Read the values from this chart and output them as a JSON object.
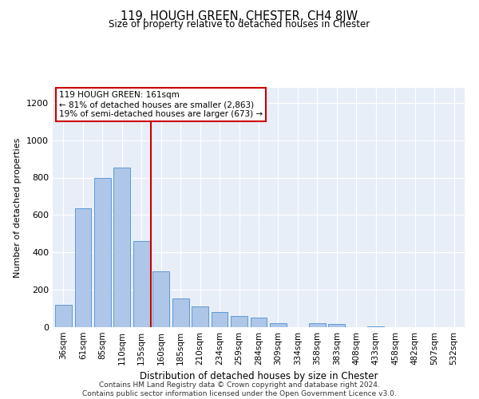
{
  "title": "119, HOUGH GREEN, CHESTER, CH4 8JW",
  "subtitle": "Size of property relative to detached houses in Chester",
  "xlabel": "Distribution of detached houses by size in Chester",
  "ylabel": "Number of detached properties",
  "footer_line1": "Contains HM Land Registry data © Crown copyright and database right 2024.",
  "footer_line2": "Contains public sector information licensed under the Open Government Licence v3.0.",
  "annotation_title": "119 HOUGH GREEN: 161sqm",
  "annotation_line1": "← 81% of detached houses are smaller (2,863)",
  "annotation_line2": "19% of semi-detached houses are larger (673) →",
  "bar_color": "#aec6e8",
  "bar_edge_color": "#5b9bd5",
  "line_color": "#cc0000",
  "annotation_box_edge": "#cc0000",
  "background_color": "#e8eef8",
  "categories": [
    "36sqm",
    "61sqm",
    "85sqm",
    "110sqm",
    "135sqm",
    "160sqm",
    "185sqm",
    "210sqm",
    "234sqm",
    "259sqm",
    "284sqm",
    "309sqm",
    "334sqm",
    "358sqm",
    "383sqm",
    "408sqm",
    "433sqm",
    "458sqm",
    "482sqm",
    "507sqm",
    "532sqm"
  ],
  "values": [
    120,
    635,
    800,
    855,
    460,
    300,
    155,
    110,
    80,
    60,
    50,
    20,
    0,
    20,
    15,
    0,
    5,
    0,
    0,
    0,
    0
  ],
  "red_line_index": 5,
  "ylim": [
    0,
    1280
  ],
  "yticks": [
    0,
    200,
    400,
    600,
    800,
    1000,
    1200
  ]
}
